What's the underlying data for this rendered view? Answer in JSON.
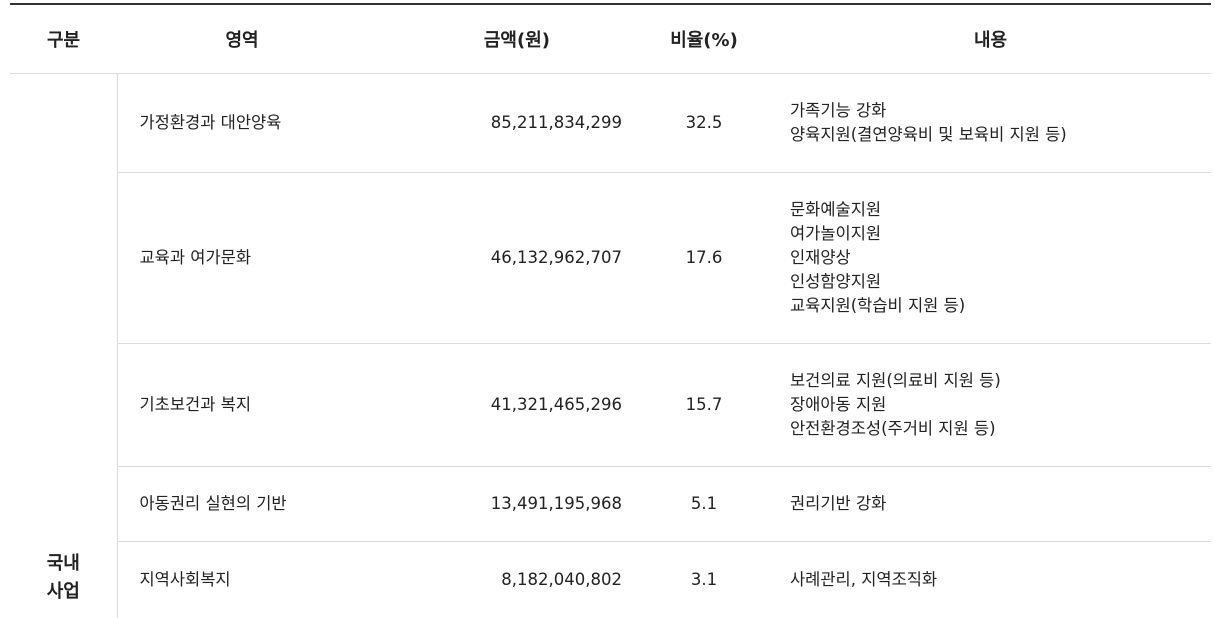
{
  "headers": {
    "category": "구분",
    "area": "영역",
    "amount": "금액(원)",
    "ratio": "비율(%)",
    "content": "내용"
  },
  "category_label": [
    "국내",
    "사업"
  ],
  "rows": [
    {
      "area": "가정환경과 대안양육",
      "amount": "85,211,834,299",
      "ratio": "32.5",
      "content": [
        "가족기능 강화",
        "양육지원(결연양육비 및 보육비 지원 등)"
      ]
    },
    {
      "area": "교육과 여가문화",
      "amount": "46,132,962,707",
      "ratio": "17.6",
      "content": [
        "문화예술지원",
        "여가놀이지원",
        "인재양상",
        "인성함양지원",
        "교육지원(학습비 지원 등)"
      ]
    },
    {
      "area": "기초보건과 복지",
      "amount": "41,321,465,296",
      "ratio": "15.7",
      "content": [
        "보건의료 지원(의료비 지원 등)",
        "장애아동 지원",
        "안전환경조성(주거비 지원 등)"
      ]
    },
    {
      "area": "아동권리 실현의 기반",
      "amount": "13,491,195,968",
      "ratio": "5.1",
      "content": [
        "권리기반 강화"
      ]
    },
    {
      "area": "지역사회복지",
      "amount": "8,182,040,802",
      "ratio": "3.1",
      "content": [
        "사례관리, 지역조직화"
      ]
    }
  ]
}
